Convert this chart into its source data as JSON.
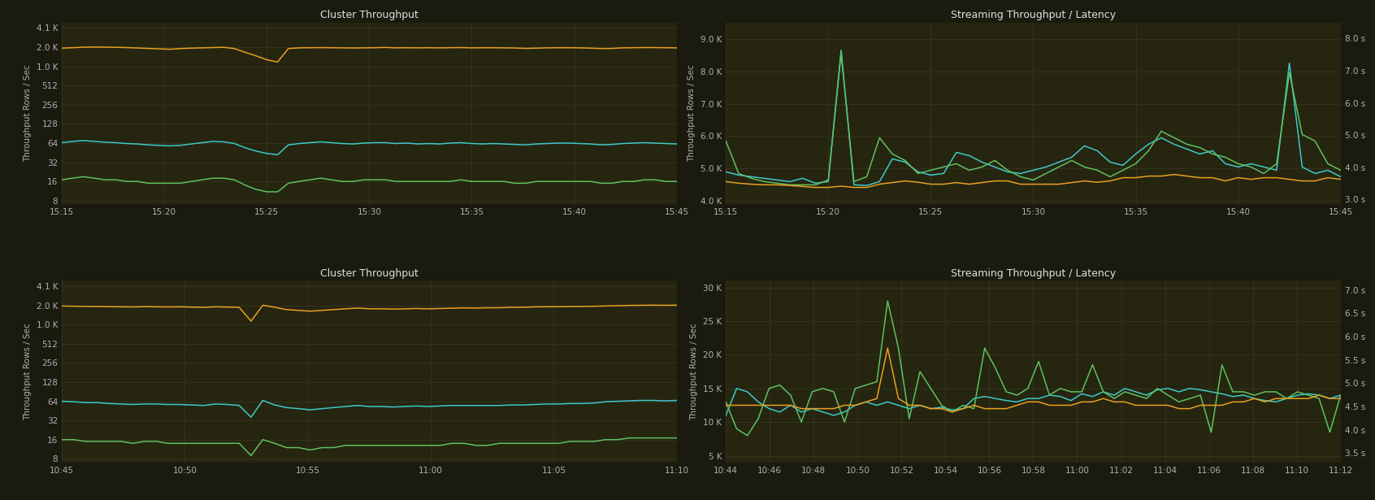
{
  "bg_color": "#1a1a0f",
  "panel_bg": "#252510",
  "grid_color": "#3a3a25",
  "text_color": "#b0b0b0",
  "title_color": "#e0e0e0",
  "top_left": {
    "title": "Cluster Throughput",
    "ylabel": "Throughput Rows / Sec",
    "xticks": [
      "15:15",
      "15:20",
      "15:25",
      "15:30",
      "15:35",
      "15:40",
      "15:45"
    ],
    "yticks": [
      8,
      16,
      32,
      64,
      128,
      256,
      512,
      1024,
      2048,
      4096
    ],
    "ytick_labels": [
      "8",
      "16",
      "32",
      "64",
      "128",
      "256",
      "512",
      "1.0 K",
      "2.0 K",
      "4.1 K"
    ],
    "ylim": [
      7,
      5000
    ],
    "colors": [
      "#e8a020",
      "#40c8c8",
      "#60c060"
    ],
    "series_orange": [
      1980,
      2010,
      2050,
      2060,
      2050,
      2040,
      2020,
      1990,
      1960,
      1930,
      1900,
      1950,
      1980,
      2000,
      2020,
      2040,
      1950,
      1700,
      1500,
      1300,
      1200,
      1950,
      2000,
      2010,
      2020,
      2010,
      2000,
      1990,
      2000,
      2010,
      2030,
      2000,
      2010,
      2000,
      2010,
      2000,
      2010,
      2020,
      2000,
      2010,
      2010,
      2000,
      1990,
      1960,
      1980,
      2000,
      2010,
      2010,
      2000,
      1980,
      1950,
      1960,
      2000,
      2010,
      2020,
      2020,
      2010,
      2000
    ],
    "series_cyan": [
      65,
      68,
      70,
      68,
      66,
      65,
      63,
      62,
      60,
      59,
      58,
      59,
      62,
      65,
      68,
      67,
      63,
      54,
      48,
      44,
      42,
      60,
      63,
      65,
      67,
      65,
      63,
      62,
      64,
      65,
      65,
      63,
      64,
      62,
      63,
      62,
      64,
      65,
      63,
      62,
      63,
      62,
      61,
      60,
      62,
      63,
      64,
      64,
      63,
      62,
      60,
      61,
      63,
      64,
      65,
      64,
      63,
      62
    ],
    "series_green": [
      17,
      18,
      19,
      18,
      17,
      17,
      16,
      16,
      15,
      15,
      15,
      15,
      16,
      17,
      18,
      18,
      17,
      14,
      12,
      11,
      11,
      15,
      16,
      17,
      18,
      17,
      16,
      16,
      17,
      17,
      17,
      16,
      16,
      16,
      16,
      16,
      16,
      17,
      16,
      16,
      16,
      16,
      15,
      15,
      16,
      16,
      16,
      16,
      16,
      16,
      15,
      15,
      16,
      16,
      17,
      17,
      16,
      16
    ]
  },
  "top_right": {
    "title": "Streaming Throughput / Latency",
    "ylabel": "Throughput Rows / Sec",
    "xticks": [
      "15:15",
      "15:20",
      "15:25",
      "15:30",
      "15:35",
      "15:40",
      "15:45"
    ],
    "yticks_left": [
      4000,
      5000,
      6000,
      7000,
      8000,
      9000
    ],
    "ytick_labels_left": [
      "4.0 K",
      "5.0 K",
      "6.0 K",
      "7.0 K",
      "8.0 K",
      "9.0 K"
    ],
    "yticks_right": [
      3.0,
      4.0,
      5.0,
      6.0,
      7.0,
      8.0
    ],
    "ytick_labels_right": [
      "3.0 s",
      "4.0 s",
      "5.0 s",
      "6.0 s",
      "7.0 s",
      "8.0 s"
    ],
    "ylim_left": [
      3900,
      9500
    ],
    "ylim_right": [
      2.85,
      8.5
    ],
    "colors": [
      "#40c8c8",
      "#60c060",
      "#e8a020"
    ],
    "series_cyan": [
      4900,
      4800,
      4750,
      4700,
      4650,
      4600,
      4700,
      4550,
      4600,
      8650,
      4500,
      4480,
      4600,
      5300,
      5200,
      4900,
      4800,
      4850,
      5500,
      5400,
      5200,
      5050,
      4900,
      4850,
      4950,
      5050,
      5200,
      5350,
      5700,
      5550,
      5200,
      5100,
      5450,
      5750,
      5950,
      5750,
      5600,
      5450,
      5550,
      5150,
      5050,
      5150,
      5050,
      4950,
      8250,
      5050,
      4850,
      4950,
      4750
    ],
    "series_green": [
      5850,
      4850,
      4700,
      4600,
      4550,
      4500,
      4500,
      4500,
      4650,
      8550,
      4600,
      4750,
      5950,
      5450,
      5250,
      4850,
      4950,
      5050,
      5150,
      4950,
      5050,
      5250,
      4950,
      4750,
      4650,
      4850,
      5050,
      5250,
      5050,
      4950,
      4750,
      4950,
      5150,
      5550,
      6150,
      5950,
      5750,
      5650,
      5450,
      5350,
      5150,
      5050,
      4850,
      5150,
      7950,
      6050,
      5850,
      5150,
      4950
    ],
    "series_orange": [
      4600,
      4550,
      4520,
      4500,
      4500,
      4480,
      4450,
      4420,
      4420,
      4460,
      4420,
      4420,
      4520,
      4570,
      4620,
      4580,
      4520,
      4520,
      4570,
      4520,
      4570,
      4620,
      4620,
      4520,
      4520,
      4520,
      4520,
      4570,
      4620,
      4580,
      4620,
      4720,
      4720,
      4770,
      4770,
      4820,
      4770,
      4720,
      4720,
      4620,
      4720,
      4670,
      4720,
      4720,
      4670,
      4620,
      4620,
      4720,
      4670
    ]
  },
  "bot_left": {
    "title": "Cluster Throughput",
    "ylabel": "Throughput Rows / Sec",
    "xticks": [
      "10:45",
      "10:50",
      "10:55",
      "11:00",
      "11:05",
      "11:10"
    ],
    "yticks": [
      8,
      16,
      32,
      64,
      128,
      256,
      512,
      1024,
      2048,
      4096
    ],
    "ytick_labels": [
      "8",
      "16",
      "32",
      "64",
      "128",
      "256",
      "512",
      "1.0 K",
      "2.0 K",
      "4.1 K"
    ],
    "ylim": [
      7,
      5000
    ],
    "colors": [
      "#e8a020",
      "#40c8c8",
      "#60c060"
    ],
    "series_orange": [
      2000,
      1985,
      1970,
      1965,
      1955,
      1945,
      1935,
      1955,
      1945,
      1935,
      1945,
      1925,
      1905,
      1945,
      1925,
      1905,
      1160,
      2060,
      1910,
      1760,
      1710,
      1660,
      1710,
      1760,
      1810,
      1860,
      1810,
      1810,
      1790,
      1810,
      1830,
      1810,
      1830,
      1850,
      1870,
      1860,
      1880,
      1880,
      1910,
      1910,
      1940,
      1950,
      1950,
      1965,
      1965,
      1985,
      2005,
      2025,
      2045,
      2055,
      2065,
      2055,
      2065
    ],
    "series_cyan": [
      64,
      63,
      61,
      61,
      59,
      58,
      57,
      58,
      58,
      57,
      57,
      56,
      55,
      58,
      57,
      55,
      36,
      66,
      56,
      51,
      49,
      47,
      49,
      51,
      53,
      55,
      53,
      53,
      52,
      53,
      54,
      53,
      54,
      55,
      55,
      55,
      55,
      55,
      56,
      56,
      57,
      58,
      58,
      59,
      59,
      60,
      63,
      64,
      65,
      66,
      66,
      65,
      66
    ],
    "series_green": [
      16,
      16,
      15,
      15,
      15,
      15,
      14,
      15,
      15,
      14,
      14,
      14,
      14,
      14,
      14,
      14,
      9,
      16,
      14,
      12,
      12,
      11,
      12,
      12,
      13,
      13,
      13,
      13,
      13,
      13,
      13,
      13,
      13,
      14,
      14,
      13,
      13,
      14,
      14,
      14,
      14,
      14,
      14,
      15,
      15,
      15,
      16,
      16,
      17,
      17,
      17,
      17,
      17
    ]
  },
  "bot_right": {
    "title": "Streaming Throughput / Latency",
    "ylabel": "Throughput Rows / Sec",
    "xticks": [
      "10:44",
      "10:46",
      "10:48",
      "10:50",
      "10:52",
      "10:54",
      "10:56",
      "10:58",
      "11:00",
      "11:02",
      "11:04",
      "11:06",
      "11:08",
      "11:10",
      "11:12"
    ],
    "yticks_left": [
      5000,
      10000,
      15000,
      20000,
      25000,
      30000
    ],
    "ytick_labels_left": [
      "5 K",
      "10 K",
      "15 K",
      "20 K",
      "25 K",
      "30 K"
    ],
    "yticks_right": [
      3.5,
      4.0,
      4.5,
      5.0,
      5.5,
      6.0,
      6.5,
      7.0
    ],
    "ytick_labels_right": [
      "3.5 s",
      "4.0 s",
      "4.5 s",
      "5.0 s",
      "5.5 s",
      "6.0 s",
      "6.5 s",
      "7.0 s"
    ],
    "ylim_left": [
      4000,
      31000
    ],
    "ylim_right": [
      3.3,
      7.2
    ],
    "colors": [
      "#40c8c8",
      "#60c060",
      "#e8a020"
    ],
    "series_cyan": [
      11000,
      15000,
      14500,
      13000,
      12000,
      11500,
      12500,
      11500,
      12000,
      11500,
      11000,
      11500,
      12500,
      13000,
      12500,
      13000,
      12500,
      12000,
      12500,
      12000,
      12200,
      11800,
      12000,
      13500,
      13800,
      13500,
      13200,
      13000,
      13500,
      13500,
      14000,
      13800,
      13200,
      14200,
      13800,
      14500,
      14000,
      15000,
      14500,
      14000,
      14800,
      15000,
      14500,
      15000,
      14800,
      14500,
      14200,
      13800,
      14000,
      13500,
      13200,
      13000,
      13500,
      14000,
      14200,
      14000,
      13500,
      14000
    ],
    "series_green": [
      13000,
      9000,
      8000,
      10500,
      15000,
      15500,
      14000,
      10000,
      14500,
      15000,
      14500,
      10000,
      15000,
      15500,
      16000,
      28000,
      21000,
      10500,
      17500,
      15000,
      12500,
      11500,
      12500,
      12000,
      21000,
      18000,
      14500,
      14000,
      15000,
      19000,
      14000,
      15000,
      14500,
      14500,
      18500,
      14500,
      13500,
      14500,
      14000,
      13500,
      15000,
      14000,
      13000,
      13500,
      14000,
      8500,
      18500,
      14500,
      14500,
      14000,
      14500,
      14500,
      13500,
      14500,
      14000,
      13500,
      8500,
      14000
    ],
    "series_orange": [
      12500,
      12500,
      12500,
      12500,
      12500,
      12500,
      12500,
      12000,
      12000,
      12000,
      12000,
      12500,
      12500,
      13000,
      13500,
      21000,
      13500,
      12500,
      12500,
      12000,
      12000,
      11500,
      12000,
      12500,
      12000,
      12000,
      12000,
      12500,
      13000,
      13000,
      12500,
      12500,
      12500,
      13000,
      13000,
      13500,
      13000,
      13000,
      12500,
      12500,
      12500,
      12500,
      12000,
      12000,
      12500,
      12500,
      12500,
      13000,
      13000,
      13500,
      13000,
      13500,
      13500,
      13500,
      13500,
      14000,
      13500,
      13500
    ]
  }
}
